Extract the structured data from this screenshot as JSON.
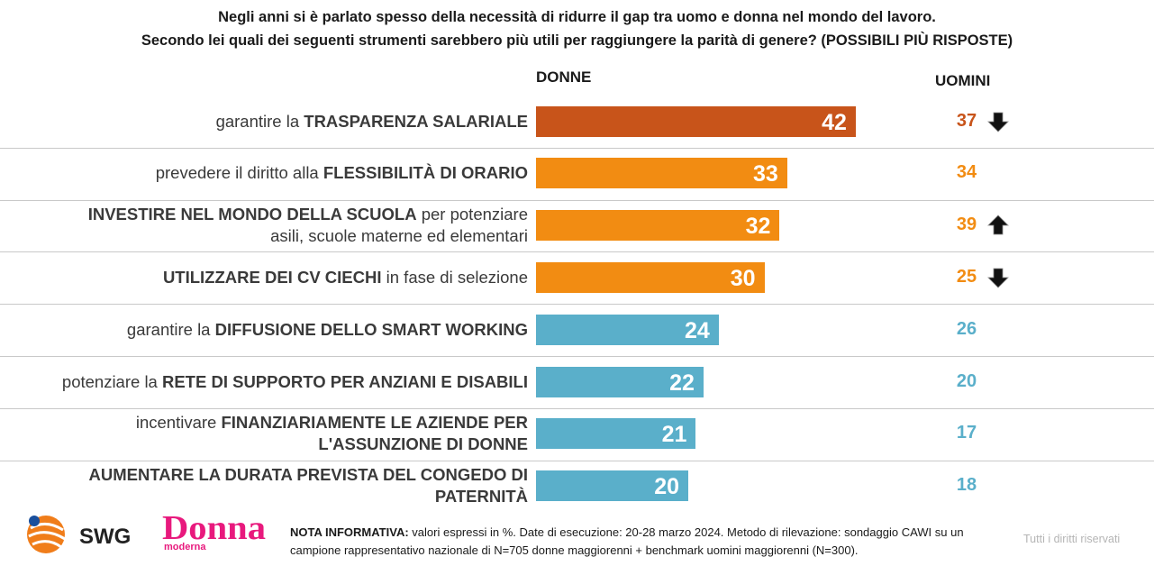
{
  "title_line1": "Negli anni si è parlato spesso della necessità di ridurre il gap tra uomo e donna nel mondo del lavoro.",
  "title_line2": "Secondo lei quali dei seguenti strumenti sarebbero più utili per raggiungere la parità di genere? (POSSIBILI PIÙ RISPOSTE)",
  "chart_data": {
    "type": "bar",
    "orientation": "horizontal",
    "categories": [
      "garantire la TRASPARENZA SALARIALE",
      "prevedere il diritto alla FLESSIBILITÀ DI ORARIO",
      "INVESTIRE NEL MONDO DELLA SCUOLA per potenziare asili, scuole materne ed elementari",
      "UTILIZZARE DEI CV CIECHI in fase di selezione",
      "garantire la DIFFUSIONE DELLO SMART WORKING",
      "potenziare la RETE DI SUPPORTO PER ANZIANI E DISABILI",
      "incentivare FINANZIARIAMENTE LE AZIENDE PER L'ASSUNZIONE DI DONNE",
      "AUMENTARE LA DURATA PREVISTA DEL CONGEDO DI PATERNITÀ"
    ],
    "series": [
      {
        "name": "DONNE",
        "values": [
          42,
          33,
          32,
          30,
          24,
          22,
          21,
          20
        ]
      },
      {
        "name": "UOMINI",
        "values": [
          37,
          34,
          39,
          25,
          26,
          20,
          17,
          18
        ]
      }
    ],
    "men_arrows": [
      "down",
      "",
      "up",
      "down",
      "",
      "",
      "",
      ""
    ],
    "bar_colors": [
      "#c8541a",
      "#f28c12",
      "#f28c12",
      "#f28c12",
      "#5aafca",
      "#5aafca",
      "#5aafca",
      "#5aafca"
    ],
    "men_colors": [
      "#c8541a",
      "#f28c12",
      "#f28c12",
      "#f28c12",
      "#5aafca",
      "#5aafca",
      "#5aafca",
      "#5aafca"
    ],
    "xlim": [
      0,
      100
    ]
  },
  "rows": [
    {
      "label": [
        {
          "t": "garantire la "
        },
        {
          "t": "TRASPARENZA SALARIALE",
          "b": true
        }
      ]
    },
    {
      "label": [
        {
          "t": "prevedere il diritto alla "
        },
        {
          "t": "FLESSIBILITÀ DI ORARIO",
          "b": true
        }
      ]
    },
    {
      "label": [
        {
          "t": "INVESTIRE NEL MONDO DELLA SCUOLA",
          "b": true
        },
        {
          "t": " per potenziare"
        },
        {
          "br": true
        },
        {
          "t": "asili, scuole materne ed elementari"
        }
      ]
    },
    {
      "label": [
        {
          "t": "UTILIZZARE DEI CV CIECHI",
          "b": true
        },
        {
          "t": " in fase di selezione"
        }
      ]
    },
    {
      "label": [
        {
          "t": "garantire la "
        },
        {
          "t": "DIFFUSIONE DELLO SMART WORKING",
          "b": true
        }
      ]
    },
    {
      "label": [
        {
          "t": "potenziare la "
        },
        {
          "t": "RETE DI SUPPORTO PER ANZIANI E DISABILI",
          "b": true
        }
      ]
    },
    {
      "label": [
        {
          "t": "incentivare "
        },
        {
          "t": "FINANZIARIAMENTE LE AZIENDE PER",
          "b": true
        },
        {
          "br": true
        },
        {
          "t": "L'ASSUNZIONE DI DONNE",
          "b": true
        }
      ]
    },
    {
      "label": [
        {
          "t": "AUMENTARE LA DURATA PREVISTA DEL CONGEDO DI",
          "b": true
        },
        {
          "br": true
        },
        {
          "t": "PATERNITÀ",
          "b": true
        }
      ]
    }
  ],
  "footer": {
    "note_bold": "NOTA INFORMATIVA:",
    "note_line1": " valori espressi in %. Date di esecuzione: 20-28 marzo 2024. Metodo di rilevazione: sondaggio CAWI su un",
    "note_line2": "campione rappresentativo nazionale di N=705 donne maggiorenni + benchmark uomini maggiorenni (N=300).",
    "rights": "Tutti i diritti riservati",
    "logo_swg": "SWG",
    "logo_donna": "Donna",
    "logo_moderna": "moderna"
  }
}
